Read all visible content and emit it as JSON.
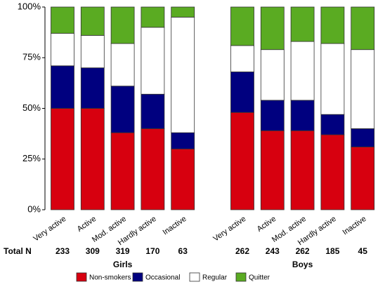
{
  "chart_data": {
    "type": "bar",
    "stacked": true,
    "ylim": [
      0,
      100
    ],
    "yticks": [
      {
        "value": 0,
        "label": "0%"
      },
      {
        "value": 25,
        "label": "25%"
      },
      {
        "value": 50,
        "label": "50%"
      },
      {
        "value": 75,
        "label": "75%"
      },
      {
        "value": 100,
        "label": "100%"
      }
    ],
    "totals_label": "Total N",
    "series": [
      {
        "name": "Non-smokers",
        "color": "#d7000f"
      },
      {
        "name": "Occasional",
        "color": "#00007f"
      },
      {
        "name": "Regular",
        "color": "#ffffff"
      },
      {
        "name": "Quitter",
        "color": "#5aab22"
      }
    ],
    "groups": [
      {
        "name": "Girls",
        "categories": [
          "Very active",
          "Active",
          "Mod. active",
          "Hardly active",
          "Inactive"
        ],
        "totals": [
          233,
          309,
          319,
          170,
          63
        ],
        "values": [
          [
            50,
            50,
            38,
            40,
            30
          ],
          [
            21,
            20,
            23,
            17,
            8
          ],
          [
            16,
            16,
            21,
            33,
            57
          ],
          [
            13,
            14,
            18,
            10,
            5
          ]
        ]
      },
      {
        "name": "Boys",
        "categories": [
          "Very active",
          "Active",
          "Mod. active",
          "Hardly active",
          "Inactive"
        ],
        "totals": [
          262,
          243,
          262,
          185,
          45
        ],
        "values": [
          [
            48,
            39,
            39,
            37,
            31
          ],
          [
            20,
            15,
            15,
            10,
            9
          ],
          [
            13,
            25,
            29,
            35,
            39
          ],
          [
            19,
            21,
            17,
            18,
            21
          ]
        ]
      }
    ]
  }
}
